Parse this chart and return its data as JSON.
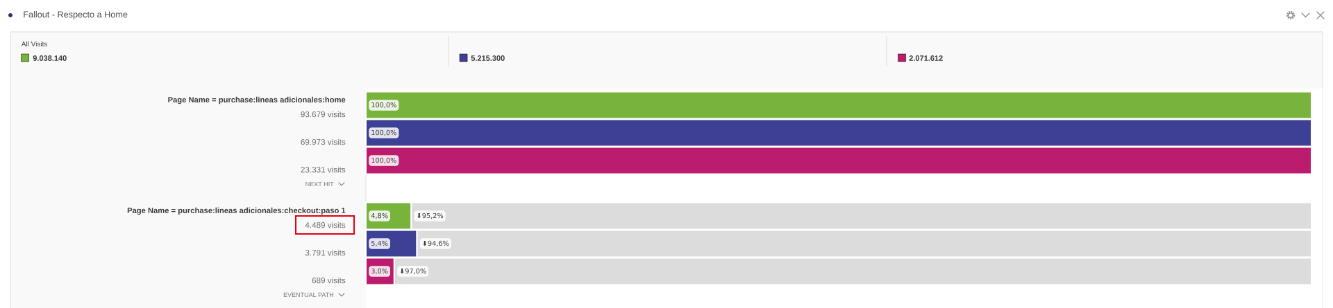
{
  "chart_data": {
    "type": "bar",
    "orientation": "horizontal",
    "stacked": true,
    "title": "Fallout - Respecto a Home",
    "categories": [
      "93.679 visits",
      "69.973 visits",
      "23.331 visits",
      null,
      "4.489 visits",
      "3.791 visits",
      "689 visits"
    ],
    "series": [
      {
        "name": "All Visits",
        "color": "#78b43c",
        "values": [
          100,
          null,
          null,
          null,
          4.8,
          null,
          null
        ],
        "value_labels": [
          "100,0%",
          null,
          null,
          null,
          "4,8%",
          null,
          null
        ]
      },
      {
        "color": "#3d4095",
        "values": [
          null,
          100,
          null,
          null,
          null,
          5.4,
          null
        ],
        "value_labels": [
          null,
          "100,0%",
          null,
          null,
          null,
          "5,4%",
          null
        ]
      },
      {
        "color": "#bc1c6e",
        "values": [
          null,
          null,
          100,
          null,
          null,
          null,
          3.0
        ],
        "value_labels": [
          null,
          null,
          "100,0%",
          null,
          null,
          null,
          "3,0%"
        ]
      },
      {
        "color": "#dcdcdc",
        "values": [
          null,
          null,
          null,
          null,
          95.2,
          94.6,
          97.0
        ],
        "value_labels": [
          null,
          null,
          null,
          null,
          "⬇95,2%",
          "⬇94,6%",
          "⬇97,0%"
        ]
      }
    ],
    "xlim": [
      0,
      100
    ],
    "tick_labels": "y",
    "legend": "top",
    "annotations": [
      "9.038.140",
      "5.215.300",
      "2.071.612",
      "Page Name = purchase:lineas adicionales:home",
      "NEXT HIT",
      "Page Name = purchase:lineas adicionales:checkout:paso 1",
      "EVENTUAL PATH"
    ]
  }
}
